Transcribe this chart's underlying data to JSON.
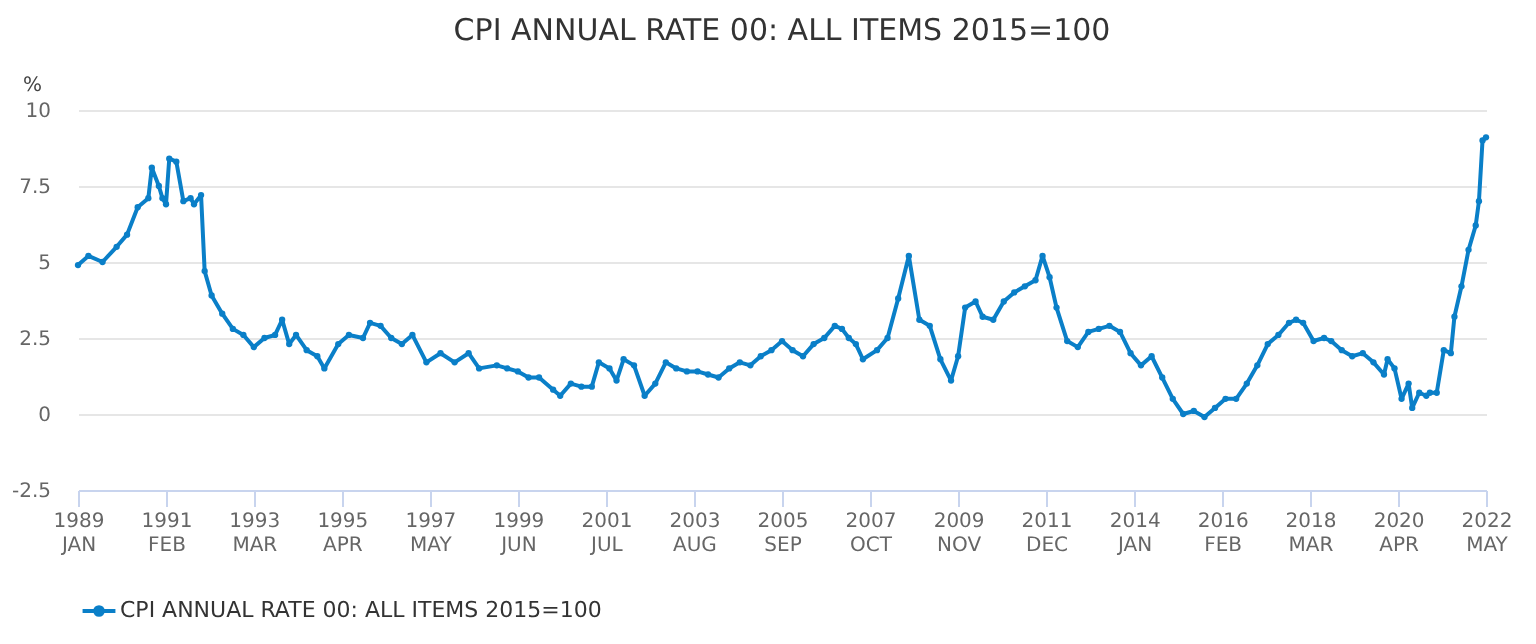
{
  "chart_data": {
    "type": "line",
    "title": "CPI ANNUAL RATE 00: ALL ITEMS 2015=100",
    "ylabel": "%",
    "x": [
      "1989-01",
      "1989-04",
      "1989-08",
      "1989-12",
      "1990-03",
      "1990-06",
      "1990-09",
      "1990-10",
      "1990-12",
      "1991-01",
      "1991-02",
      "1991-03",
      "1991-05",
      "1991-07",
      "1991-09",
      "1991-10",
      "1991-12",
      "1992-01",
      "1992-03",
      "1992-06",
      "1992-09",
      "1992-12",
      "1993-03",
      "1993-06",
      "1993-09",
      "1993-11",
      "1994-01",
      "1994-03",
      "1994-06",
      "1994-09",
      "1994-11",
      "1995-03",
      "1995-06",
      "1995-10",
      "1995-12",
      "1996-03",
      "1996-06",
      "1996-09",
      "1996-12",
      "1997-04",
      "1997-08",
      "1997-12",
      "1998-04",
      "1998-07",
      "1998-12",
      "1999-03",
      "1999-06",
      "1999-09",
      "1999-12",
      "2000-04",
      "2000-06",
      "2000-09",
      "2000-12",
      "2001-03",
      "2001-05",
      "2001-08",
      "2001-10",
      "2001-12",
      "2002-03",
      "2002-06",
      "2002-09",
      "2002-12",
      "2003-03",
      "2003-06",
      "2003-09",
      "2003-12",
      "2004-03",
      "2004-06",
      "2004-09",
      "2004-12",
      "2005-03",
      "2005-06",
      "2005-09",
      "2005-12",
      "2006-03",
      "2006-06",
      "2006-09",
      "2006-12",
      "2007-02",
      "2007-04",
      "2007-06",
      "2007-08",
      "2007-12",
      "2008-03",
      "2008-06",
      "2008-09",
      "2008-12",
      "2009-03",
      "2009-06",
      "2009-09",
      "2009-11",
      "2010-01",
      "2010-04",
      "2010-06",
      "2010-09",
      "2010-12",
      "2011-03",
      "2011-06",
      "2011-09",
      "2011-11",
      "2012-01",
      "2012-03",
      "2012-06",
      "2012-09",
      "2012-12",
      "2013-03",
      "2013-06",
      "2013-09",
      "2013-12",
      "2014-03",
      "2014-06",
      "2014-09",
      "2014-12",
      "2015-03",
      "2015-06",
      "2015-09",
      "2015-12",
      "2016-03",
      "2016-06",
      "2016-09",
      "2016-12",
      "2017-03",
      "2017-06",
      "2017-09",
      "2017-11",
      "2018-01",
      "2018-04",
      "2018-07",
      "2018-09",
      "2018-12",
      "2019-03",
      "2019-06",
      "2019-09",
      "2019-12",
      "2020-01",
      "2020-03",
      "2020-05",
      "2020-07",
      "2020-08",
      "2020-10",
      "2020-12",
      "2021-01",
      "2021-03",
      "2021-05",
      "2021-07",
      "2021-08",
      "2021-10",
      "2021-12",
      "2022-02",
      "2022-03",
      "2022-04",
      "2022-05"
    ],
    "series": [
      {
        "name": "CPI ANNUAL RATE 00: ALL ITEMS 2015=100",
        "color": "#0a7fc8",
        "values": [
          4.9,
          5.2,
          5.0,
          5.5,
          5.9,
          6.8,
          7.1,
          8.1,
          7.5,
          7.1,
          6.9,
          8.4,
          8.3,
          7.0,
          7.1,
          6.9,
          7.2,
          4.7,
          3.9,
          3.3,
          2.8,
          2.6,
          2.2,
          2.5,
          2.6,
          3.1,
          2.3,
          2.6,
          2.1,
          1.9,
          1.5,
          2.3,
          2.6,
          2.5,
          3.0,
          2.9,
          2.5,
          2.3,
          2.6,
          1.7,
          2.0,
          1.7,
          2.0,
          1.5,
          1.6,
          1.5,
          1.4,
          1.2,
          1.2,
          0.8,
          0.6,
          1.0,
          0.9,
          0.9,
          1.7,
          1.5,
          1.1,
          1.8,
          1.6,
          0.6,
          1.0,
          1.7,
          1.5,
          1.4,
          1.4,
          1.3,
          1.2,
          1.5,
          1.7,
          1.6,
          1.9,
          2.1,
          2.4,
          2.1,
          1.9,
          2.3,
          2.5,
          2.9,
          2.8,
          2.5,
          2.3,
          1.8,
          2.1,
          2.5,
          3.8,
          5.2,
          3.1,
          2.9,
          1.8,
          1.1,
          1.9,
          3.5,
          3.7,
          3.2,
          3.1,
          3.7,
          4.0,
          4.2,
          4.4,
          5.2,
          4.5,
          3.5,
          2.4,
          2.2,
          2.7,
          2.8,
          2.9,
          2.7,
          2.0,
          1.6,
          1.9,
          1.2,
          0.5,
          0.0,
          0.1,
          -0.1,
          0.2,
          0.5,
          0.5,
          1.0,
          1.6,
          2.3,
          2.6,
          3.0,
          3.1,
          3.0,
          2.4,
          2.5,
          2.4,
          2.1,
          1.9,
          2.0,
          1.7,
          1.3,
          1.8,
          1.5,
          0.5,
          1.0,
          0.2,
          0.7,
          0.6,
          0.7,
          0.7,
          2.1,
          2.0,
          3.2,
          4.2,
          5.4,
          6.2,
          7.0,
          9.0,
          9.1
        ]
      }
    ],
    "xlim": [
      "1989-01",
      "2022-05"
    ],
    "xticks": [
      {
        "value": "1989-01",
        "label": "1989 JAN"
      },
      {
        "value": "1991-02",
        "label": "1991 FEB"
      },
      {
        "value": "1993-03",
        "label": "1993 MAR"
      },
      {
        "value": "1995-04",
        "label": "1995 APR"
      },
      {
        "value": "1997-05",
        "label": "1997 MAY"
      },
      {
        "value": "1999-06",
        "label": "1999 JUN"
      },
      {
        "value": "2001-07",
        "label": "2001 JUL"
      },
      {
        "value": "2003-08",
        "label": "2003 AUG"
      },
      {
        "value": "2005-09",
        "label": "2005 SEP"
      },
      {
        "value": "2007-10",
        "label": "2007 OCT"
      },
      {
        "value": "2009-11",
        "label": "2009 NOV"
      },
      {
        "value": "2011-12",
        "label": "2011 DEC"
      },
      {
        "value": "2014-01",
        "label": "2014 JAN"
      },
      {
        "value": "2016-02",
        "label": "2016 FEB"
      },
      {
        "value": "2018-03",
        "label": "2018 MAR"
      },
      {
        "value": "2020-04",
        "label": "2020 APR"
      },
      {
        "value": "2022-05",
        "label": "2022 MAY"
      }
    ],
    "ylim": [
      -2.5,
      10
    ],
    "yticks": [
      -2.5,
      0,
      2.5,
      5,
      7.5,
      10
    ],
    "grid": "y",
    "legend": "bottom",
    "marker": "circle",
    "line_style": "solid"
  }
}
